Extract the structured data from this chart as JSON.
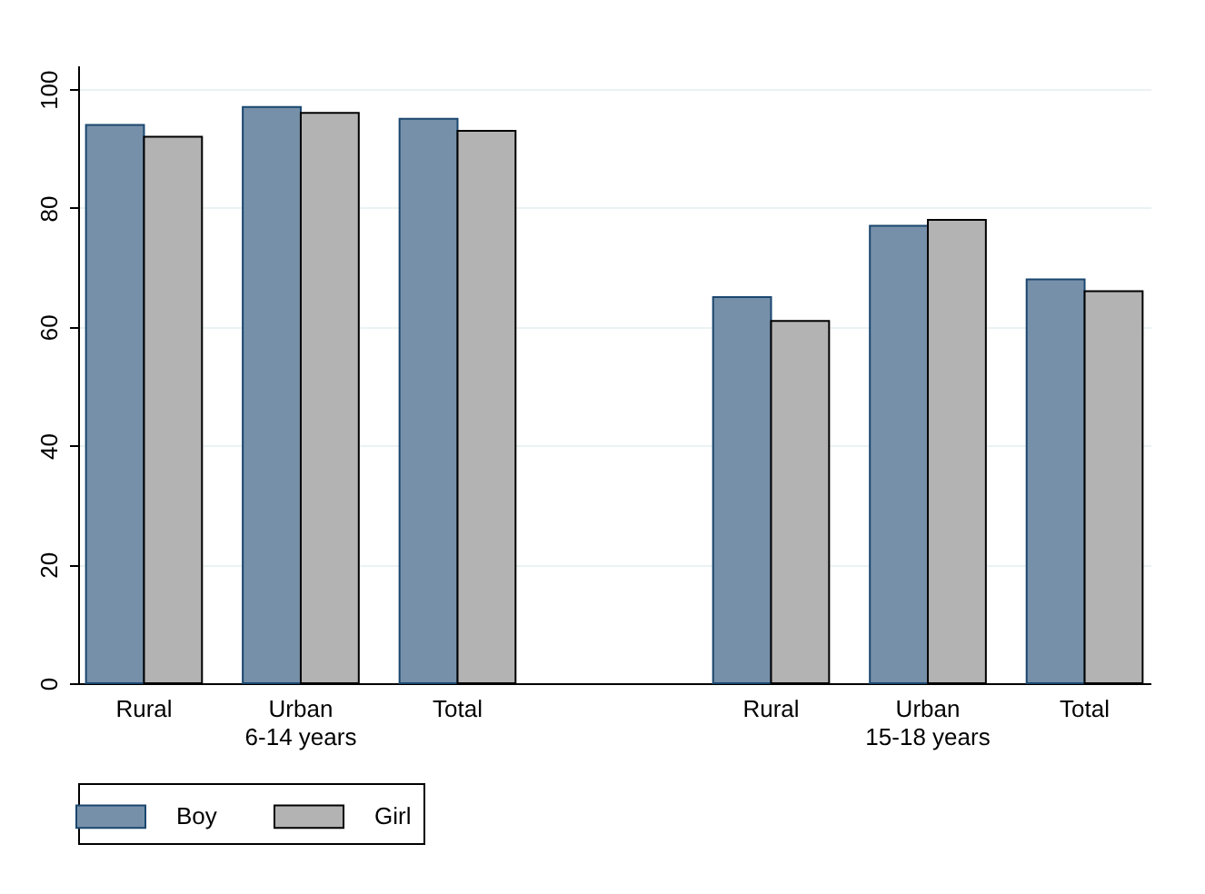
{
  "chart_data": {
    "type": "bar",
    "categories": [
      "Rural",
      "Urban",
      "Total",
      "Rural",
      "Urban",
      "Total"
    ],
    "series": [
      {
        "name": "Boy",
        "color": "#7790a9",
        "values": [
          94,
          97,
          95,
          65,
          77,
          68
        ]
      },
      {
        "name": "Girl",
        "color": "#b3b3b3",
        "values": [
          92,
          96,
          93,
          61,
          78,
          66
        ]
      }
    ],
    "annotations": [
      "6-14 years",
      "15-18 years"
    ],
    "ylim": [
      0,
      104
    ],
    "yticks": [
      0,
      20,
      40,
      60,
      80,
      100
    ],
    "grid": "y",
    "legend": "bottom"
  }
}
